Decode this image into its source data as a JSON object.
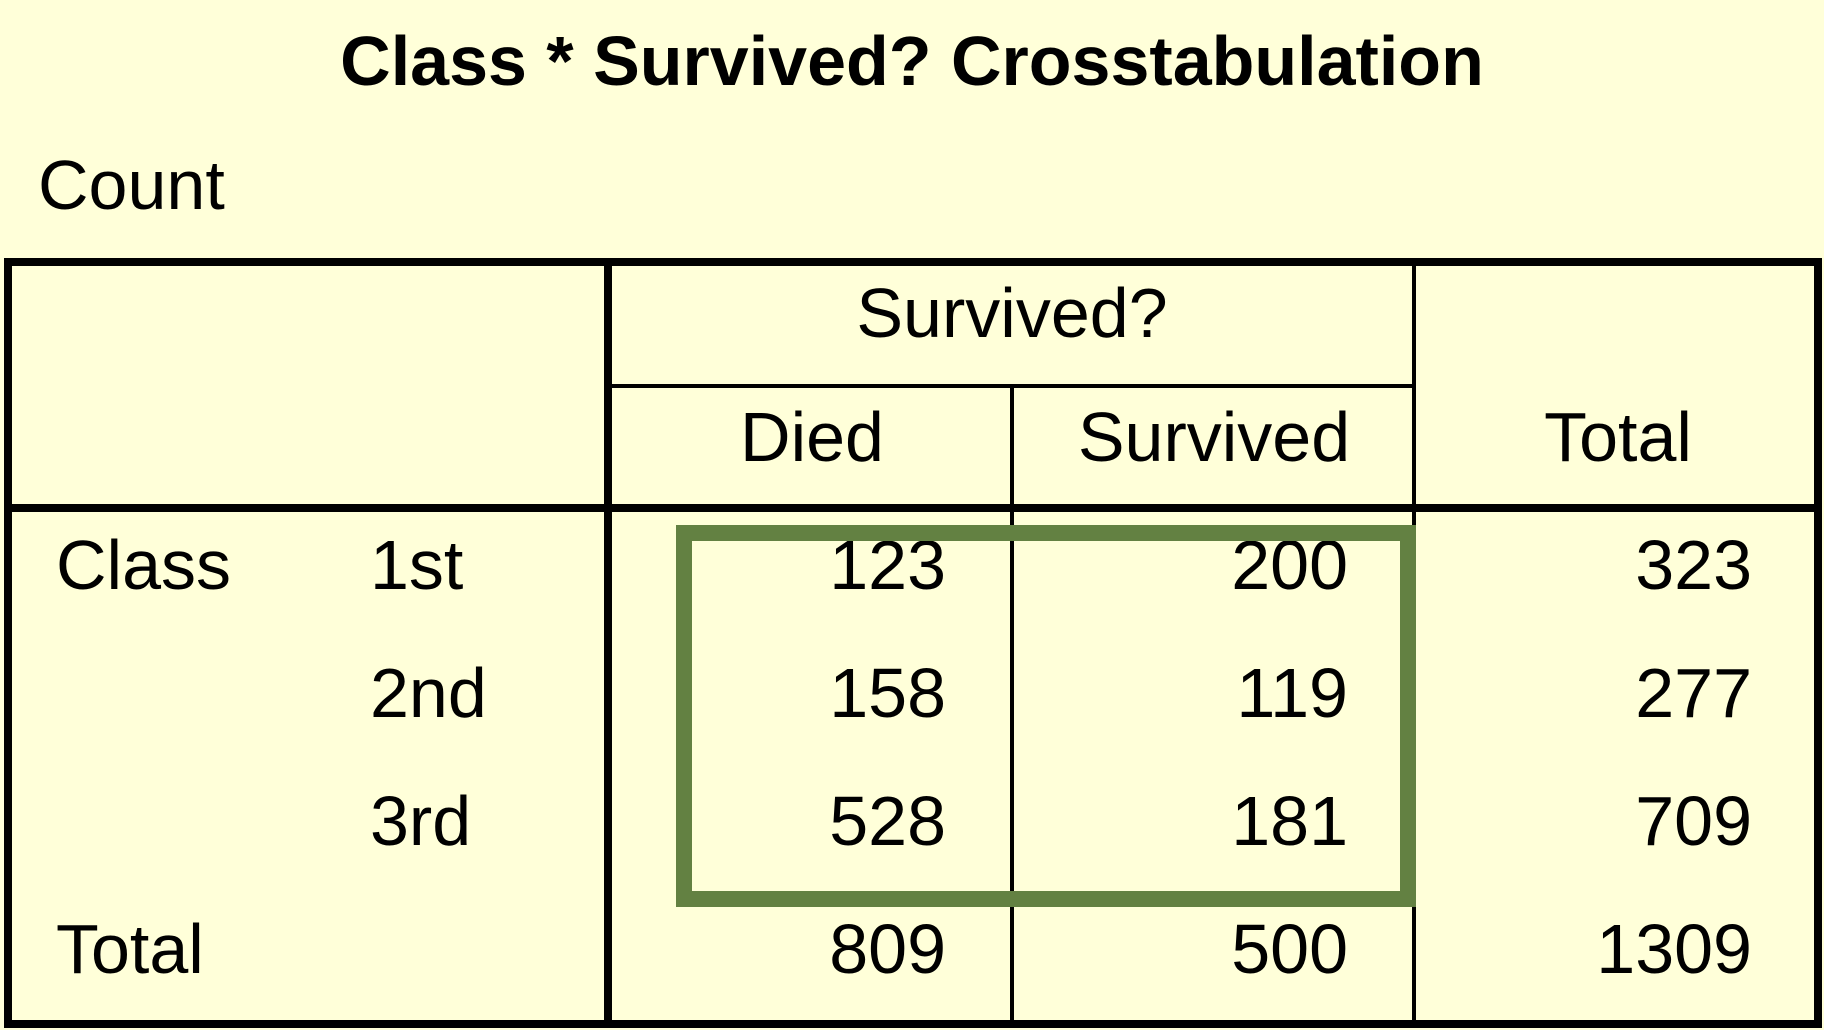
{
  "title": "Class * Survived? Crosstabulation",
  "count_label": "Count",
  "header": {
    "group": "Survived?",
    "columns": [
      "Died",
      "Survived"
    ],
    "total": "Total"
  },
  "row_variable": "Class",
  "rows": [
    {
      "label": "1st",
      "died": "123",
      "survived": "200",
      "total": "323"
    },
    {
      "label": "2nd",
      "died": "158",
      "survived": "119",
      "total": "277"
    },
    {
      "label": "3rd",
      "died": "528",
      "survived": "181",
      "total": "709"
    }
  ],
  "totals": {
    "label": "Total",
    "died": "809",
    "survived": "500",
    "total": "1309"
  },
  "colors": {
    "background": "#ffffd9",
    "highlight": "#638142"
  }
}
